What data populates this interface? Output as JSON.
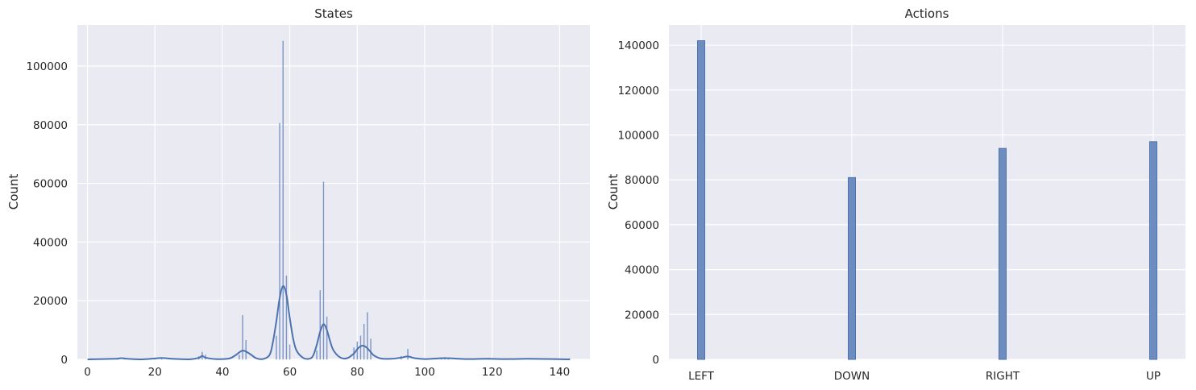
{
  "chart_data": [
    {
      "type": "bar",
      "subtype": "histogram-with-kde",
      "title": "States",
      "xlabel": "",
      "ylabel": "Count",
      "xlim": [
        -3,
        149
      ],
      "ylim": [
        0,
        114000
      ],
      "xticks": [
        0,
        20,
        40,
        60,
        80,
        100,
        120,
        140
      ],
      "yticks": [
        0,
        20000,
        40000,
        60000,
        80000,
        100000
      ],
      "grid": true,
      "x": [
        1,
        9,
        11,
        20,
        22,
        33,
        34,
        35,
        45,
        46,
        47,
        56,
        57,
        58,
        59,
        60,
        68,
        69,
        70,
        71,
        79,
        80,
        81,
        82,
        83,
        84,
        93,
        95,
        105,
        106,
        107,
        118,
        119,
        131,
        143
      ],
      "values": [
        300,
        400,
        300,
        300,
        500,
        1000,
        2500,
        1500,
        1500,
        15000,
        6500,
        8000,
        80500,
        108500,
        28500,
        5000,
        3000,
        23500,
        60500,
        14500,
        4000,
        6000,
        8000,
        12000,
        16000,
        7000,
        1000,
        3500,
        500,
        700,
        500,
        400,
        500,
        300,
        300
      ],
      "kde": {
        "x": [
          0,
          8,
          10,
          12,
          16,
          20,
          22,
          25,
          30,
          33,
          34,
          35,
          38,
          42,
          44,
          46,
          48,
          50,
          52,
          54,
          55,
          56,
          57,
          58,
          59,
          60,
          61,
          62,
          64,
          66,
          67,
          68,
          69,
          70,
          71,
          72,
          73,
          75,
          77,
          79,
          80,
          81,
          82,
          83,
          84,
          85,
          87,
          90,
          93,
          95,
          97,
          100,
          106,
          112,
          118,
          125,
          131,
          143
        ],
        "y": [
          0,
          200,
          400,
          200,
          0,
          300,
          500,
          200,
          0,
          500,
          1200,
          600,
          100,
          300,
          1500,
          3000,
          2000,
          400,
          100,
          1500,
          6000,
          13000,
          21000,
          25000,
          22000,
          14000,
          7000,
          3000,
          500,
          300,
          1500,
          5000,
          9500,
          12000,
          10000,
          6000,
          3000,
          600,
          400,
          2000,
          3500,
          4500,
          4600,
          3800,
          2500,
          1300,
          300,
          200,
          600,
          1000,
          400,
          100,
          400,
          100,
          200,
          100,
          200,
          0
        ]
      }
    },
    {
      "type": "bar",
      "title": "Actions",
      "xlabel": "",
      "ylabel": "Count",
      "categories": [
        "LEFT",
        "DOWN",
        "RIGHT",
        "UP"
      ],
      "values": [
        142000,
        81000,
        94000,
        97000
      ],
      "ylim": [
        0,
        149000
      ],
      "yticks": [
        0,
        20000,
        40000,
        60000,
        80000,
        100000,
        120000,
        140000
      ],
      "grid": true
    }
  ]
}
